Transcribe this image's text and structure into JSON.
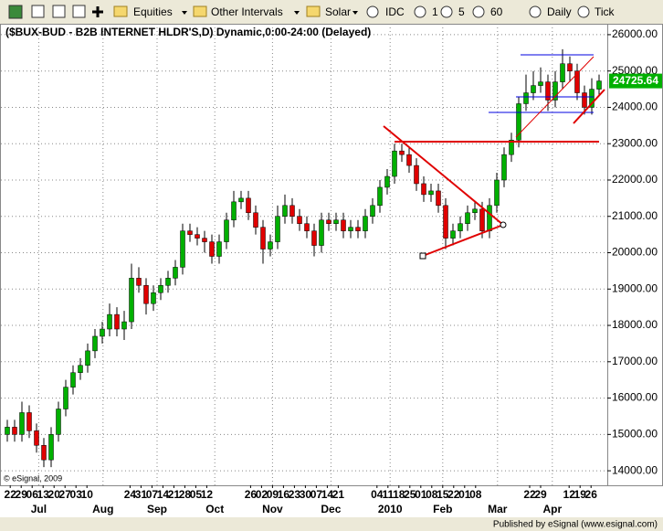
{
  "toolbar": {
    "items": [
      "Equities",
      "Other Intervals",
      "Solar",
      "IDC",
      "1",
      "5",
      "60",
      "Daily",
      "Tick"
    ]
  },
  "chart_data": {
    "type": "candlestick",
    "title": "($BUX-BUD - B2B INTERNET HLDR'S,D) Dynamic,0:00-24:00 (Delayed)",
    "copyright": "© eSignal, 2009",
    "footer": "Published by eSignal (www.esignal.com)",
    "up_color": "#00b000",
    "down_color": "#e00000",
    "open": [
      15000,
      15200,
      15000,
      15600,
      15100,
      14700,
      14300,
      15000,
      15700,
      16300,
      16700,
      16900,
      17300,
      17700,
      17900,
      18300,
      17900,
      18100,
      19300,
      19100,
      18600,
      18900,
      19100,
      19300,
      19600,
      20600,
      20500,
      20400,
      20300,
      19900,
      20300,
      20900,
      21400,
      21500,
      21100,
      20700,
      20100,
      20300,
      21000,
      21300,
      21000,
      20800,
      20600,
      20200,
      20900,
      20800,
      20900,
      20600,
      20700,
      20600,
      21000,
      21300,
      21800,
      22100,
      22800,
      22700,
      22400,
      21900,
      21600,
      21700,
      21300,
      20400,
      20600,
      20800,
      21100,
      21200,
      20600,
      21300,
      22000,
      22700,
      23100,
      24100,
      24400,
      24600,
      24700,
      24200,
      24700,
      25200,
      25000,
      24400,
      24000,
      24500
    ],
    "high": [
      15400,
      15400,
      15900,
      15800,
      15300,
      14900,
      15200,
      15900,
      16500,
      16900,
      17100,
      17500,
      17900,
      18100,
      18600,
      18500,
      18400,
      19700,
      19600,
      19300,
      19100,
      19300,
      19500,
      19800,
      20800,
      20800,
      20700,
      20600,
      20500,
      20500,
      21100,
      21700,
      21700,
      21700,
      21300,
      20900,
      20500,
      21300,
      21600,
      21500,
      21200,
      21000,
      20800,
      21100,
      21100,
      21100,
      21100,
      20900,
      20900,
      21200,
      21500,
      22000,
      22300,
      23000,
      23000,
      22900,
      22600,
      22100,
      21900,
      21900,
      21500,
      20800,
      21000,
      21300,
      21400,
      21400,
      21500,
      22200,
      22900,
      23300,
      24300,
      24900,
      25000,
      25100,
      24900,
      25000,
      25600,
      25400,
      25200,
      24600,
      24800,
      24900
    ],
    "low": [
      14800,
      14800,
      14800,
      14900,
      14500,
      14100,
      14100,
      14800,
      15500,
      16100,
      16500,
      16700,
      17100,
      17500,
      17700,
      17700,
      17600,
      17900,
      18900,
      18300,
      18400,
      18700,
      18900,
      19100,
      19400,
      20300,
      20200,
      20000,
      19700,
      19700,
      20100,
      20700,
      21200,
      20900,
      20500,
      19700,
      19900,
      20100,
      20800,
      20800,
      20600,
      20400,
      19900,
      20000,
      20600,
      20600,
      20400,
      20400,
      20400,
      20400,
      20800,
      21100,
      21600,
      21900,
      22500,
      22200,
      21700,
      21400,
      21400,
      21100,
      20100,
      20200,
      20400,
      20600,
      20900,
      20400,
      20400,
      21100,
      21800,
      22500,
      22900,
      23900,
      24200,
      24400,
      23900,
      24000,
      24500,
      24700,
      24200,
      23800,
      23800,
      24300
    ],
    "close": [
      15200,
      15000,
      15600,
      15100,
      14700,
      14300,
      15000,
      15700,
      16300,
      16700,
      16900,
      17300,
      17700,
      17900,
      18300,
      17900,
      18100,
      19300,
      19100,
      18600,
      18900,
      19100,
      19300,
      19600,
      20600,
      20500,
      20400,
      20300,
      19900,
      20300,
      20900,
      21400,
      21500,
      21100,
      20700,
      20100,
      20300,
      21000,
      21300,
      21000,
      20800,
      20600,
      20200,
      20900,
      20800,
      20900,
      20600,
      20700,
      20600,
      21000,
      21300,
      21800,
      22100,
      22800,
      22700,
      22400,
      21900,
      21600,
      21700,
      21300,
      20400,
      20600,
      20800,
      21100,
      21200,
      20600,
      21300,
      22000,
      22700,
      23100,
      24100,
      24400,
      24600,
      24700,
      24200,
      24700,
      25200,
      25000,
      24400,
      24000,
      24500,
      24725.64
    ],
    "ylim": [
      13600,
      26300
    ],
    "yticks": [
      {
        "value": 14000,
        "label": "14000.00"
      },
      {
        "value": 15000,
        "label": "15000.00"
      },
      {
        "value": 16000,
        "label": "16000.00"
      },
      {
        "value": 17000,
        "label": "17000.00"
      },
      {
        "value": 18000,
        "label": "18000.00"
      },
      {
        "value": 19000,
        "label": "19000.00"
      },
      {
        "value": 20000,
        "label": "20000.00"
      },
      {
        "value": 21000,
        "label": "21000.00"
      },
      {
        "value": 22000,
        "label": "22000.00"
      },
      {
        "value": 23000,
        "label": "23000.00"
      },
      {
        "value": 24000,
        "label": "24000.00"
      },
      {
        "value": 25000,
        "label": "25000.00"
      },
      {
        "value": 26000,
        "label": "26000.00"
      }
    ],
    "xticks": [
      {
        "value": 0.4,
        "label": "22"
      },
      {
        "value": 1.9,
        "label": "29"
      },
      {
        "value": 3.4,
        "label": "06"
      },
      {
        "value": 4.9,
        "label": "13"
      },
      {
        "value": 6.4,
        "label": "20"
      },
      {
        "value": 7.9,
        "label": "27"
      },
      {
        "value": 9.4,
        "label": "03"
      },
      {
        "value": 10.9,
        "label": "10"
      },
      {
        "value": 16.8,
        "label": "24"
      },
      {
        "value": 18.3,
        "label": "31"
      },
      {
        "value": 19.8,
        "label": "07"
      },
      {
        "value": 21.3,
        "label": "14"
      },
      {
        "value": 22.8,
        "label": "21"
      },
      {
        "value": 24.3,
        "label": "28"
      },
      {
        "value": 25.8,
        "label": "05"
      },
      {
        "value": 27.3,
        "label": "12"
      },
      {
        "value": 33.3,
        "label": "26"
      },
      {
        "value": 34.8,
        "label": "02"
      },
      {
        "value": 36.3,
        "label": "09"
      },
      {
        "value": 37.8,
        "label": "16"
      },
      {
        "value": 39.3,
        "label": "23"
      },
      {
        "value": 40.8,
        "label": "30"
      },
      {
        "value": 42.3,
        "label": "07"
      },
      {
        "value": 43.8,
        "label": "14"
      },
      {
        "value": 45.3,
        "label": "21"
      },
      {
        "value": 50.6,
        "label": "04"
      },
      {
        "value": 52.1,
        "label": "11"
      },
      {
        "value": 53.6,
        "label": "18"
      },
      {
        "value": 55.1,
        "label": "25"
      },
      {
        "value": 56.6,
        "label": "01"
      },
      {
        "value": 58.1,
        "label": "08"
      },
      {
        "value": 59.6,
        "label": "15"
      },
      {
        "value": 61.1,
        "label": "22"
      },
      {
        "value": 62.6,
        "label": "01"
      },
      {
        "value": 64.1,
        "label": "08"
      },
      {
        "value": 71.5,
        "label": "22"
      },
      {
        "value": 73.0,
        "label": "29"
      },
      {
        "value": 76.9,
        "label": "12"
      },
      {
        "value": 78.4,
        "label": "19"
      },
      {
        "value": 79.9,
        "label": "26"
      }
    ],
    "month_ticks": [
      {
        "value": 4.3,
        "label": "Jul"
      },
      {
        "value": 13.1,
        "label": "Aug"
      },
      {
        "value": 20.5,
        "label": "Sep"
      },
      {
        "value": 28.4,
        "label": "Oct"
      },
      {
        "value": 36.3,
        "label": "Nov"
      },
      {
        "value": 44.3,
        "label": "Dec"
      },
      {
        "value": 52.4,
        "label": "2010"
      },
      {
        "value": 59.6,
        "label": "Feb"
      },
      {
        "value": 67.1,
        "label": "Mar"
      },
      {
        "value": 74.6,
        "label": "Apr"
      }
    ],
    "grid": true
  }
}
